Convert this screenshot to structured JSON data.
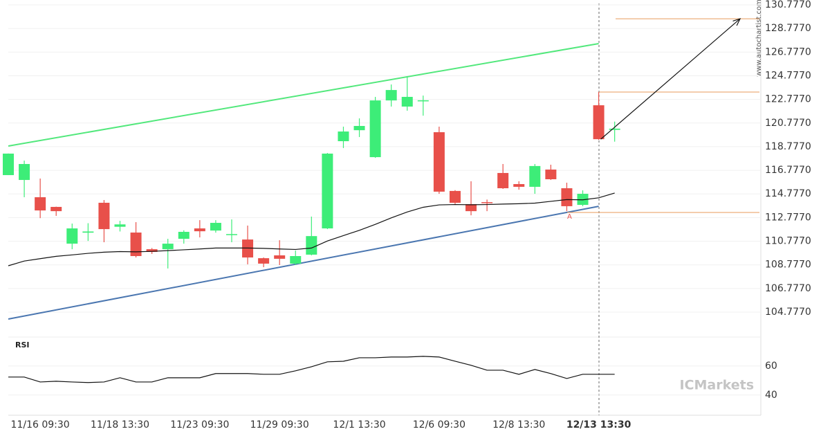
{
  "chart_data": {
    "type": "candlestick",
    "categories": [
      null,
      null,
      "11/16 09:30",
      null,
      null,
      null,
      null,
      "11/18 13:30",
      null,
      null,
      null,
      null,
      "11/23 09:30",
      null,
      null,
      null,
      null,
      "11/29 09:30",
      null,
      null,
      null,
      null,
      "12/1 13:30",
      null,
      null,
      null,
      null,
      "12/6 09:30",
      null,
      null,
      null,
      null,
      "12/8 13:30",
      null,
      null,
      null,
      null,
      "12/13 13:30",
      null
    ],
    "open": [
      116.37,
      115.96,
      114.5,
      113.68,
      110.57,
      111.5,
      114.03,
      112.0,
      111.51,
      110.1,
      110.1,
      110.98,
      111.86,
      111.68,
      111.33,
      110.92,
      109.34,
      109.58,
      108.88,
      109.64,
      111.86,
      119.24,
      120.17,
      117.89,
      122.69,
      122.17,
      122.63,
      120.0,
      115.03,
      113.91,
      114.08,
      116.55,
      115.61,
      115.38,
      116.84,
      115.26,
      113.85,
      122.28,
      120.2
    ],
    "high": [
      118.2,
      117.6,
      116.08,
      113.7,
      112.27,
      112.3,
      114.26,
      112.5,
      112.39,
      110.2,
      110.98,
      111.7,
      112.56,
      112.56,
      112.62,
      112.1,
      109.4,
      110.86,
      109.99,
      112.86,
      118.24,
      120.47,
      121.17,
      122.99,
      124.04,
      124.68,
      123.1,
      120.47,
      115.1,
      115.85,
      114.3,
      117.31,
      115.85,
      117.31,
      117.25,
      115.73,
      115.08,
      123.4,
      120.9
    ],
    "low": [
      116.37,
      114.5,
      112.73,
      112.92,
      110.1,
      110.8,
      110.69,
      111.6,
      109.4,
      109.7,
      108.47,
      110.57,
      111.1,
      111.5,
      110.69,
      108.82,
      108.58,
      108.76,
      108.76,
      109.58,
      111.8,
      118.66,
      119.59,
      117.83,
      122.17,
      121.82,
      121.4,
      114.79,
      113.85,
      112.97,
      113.32,
      115.2,
      115.14,
      114.79,
      115.96,
      113.32,
      113.74,
      119.35,
      119.2
    ],
    "close": [
      118.19,
      117.31,
      113.38,
      113.32,
      111.86,
      111.6,
      111.8,
      112.2,
      109.52,
      109.87,
      110.57,
      111.57,
      111.62,
      112.33,
      111.38,
      109.4,
      108.88,
      109.29,
      109.52,
      111.21,
      118.19,
      120.06,
      120.53,
      122.69,
      123.57,
      122.99,
      122.7,
      114.97,
      114.03,
      113.32,
      114.03,
      115.26,
      115.38,
      117.14,
      116.02,
      113.74,
      114.79,
      119.41,
      120.3
    ],
    "up_color": "#3ded78",
    "down_color": "#e8504a",
    "moving_average": {
      "color": "#111111",
      "values": [
        108.7,
        109.1,
        109.3,
        109.5,
        109.62,
        109.75,
        109.85,
        109.9,
        109.88,
        109.92,
        109.98,
        110.05,
        110.12,
        110.2,
        110.2,
        110.2,
        110.17,
        110.12,
        110.08,
        110.2,
        110.8,
        111.25,
        111.7,
        112.2,
        112.75,
        113.25,
        113.65,
        113.85,
        113.88,
        113.86,
        113.88,
        113.92,
        113.95,
        114.0,
        114.15,
        114.3,
        114.28,
        114.45,
        114.85
      ]
    },
    "resistance": {
      "color": "#52e87c",
      "values": [
        118.83,
        127.5
      ]
    },
    "support": {
      "color": "#4a76b0",
      "values": [
        104.19,
        113.73
      ]
    },
    "levels": {
      "color": "#e89a5a",
      "values": [
        129.6,
        123.4,
        113.21
      ]
    },
    "pattern_label": "A",
    "ylim": [
      104.777,
      130.777
    ],
    "yticks": [
      {
        "value": 130.777,
        "label": "130.7770"
      },
      {
        "value": 128.777,
        "label": "128.7770"
      },
      {
        "value": 126.777,
        "label": "126.7770"
      },
      {
        "value": 124.777,
        "label": "124.7770"
      },
      {
        "value": 122.777,
        "label": "122.7770"
      },
      {
        "value": 120.777,
        "label": "120.7770"
      },
      {
        "value": 118.777,
        "label": "118.7770"
      },
      {
        "value": 116.777,
        "label": "116.7770"
      },
      {
        "value": 114.777,
        "label": "114.7770"
      },
      {
        "value": 112.777,
        "label": "112.7770"
      },
      {
        "value": 110.777,
        "label": "110.7770"
      },
      {
        "value": 108.777,
        "label": "108.7770"
      },
      {
        "value": 106.777,
        "label": "106.7770"
      },
      {
        "value": 104.777,
        "label": "104.7770"
      }
    ],
    "rsi": {
      "title": "RSI",
      "color": "#111111",
      "ylim": [
        27,
        80
      ],
      "yticks": [
        40,
        60
      ],
      "values": [
        52.4,
        52.4,
        49.0,
        49.5,
        49.0,
        48.6,
        49.0,
        51.9,
        49.0,
        49.0,
        51.9,
        51.9,
        51.9,
        54.8,
        54.8,
        54.8,
        54.3,
        54.3,
        56.7,
        59.5,
        62.9,
        63.3,
        65.7,
        65.7,
        66.2,
        66.2,
        66.7,
        66.2,
        63.3,
        60.5,
        57.1,
        57.1,
        54.3,
        57.6,
        54.8,
        51.4,
        54.3,
        54.3,
        54.3
      ]
    },
    "watermark": "www.autochartist.com",
    "brand": "ICMarkets"
  }
}
